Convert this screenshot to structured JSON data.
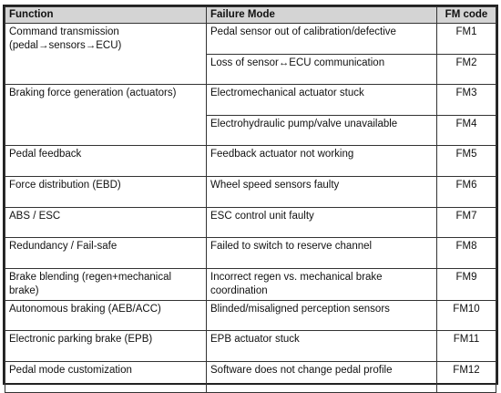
{
  "table": {
    "header": [
      "Function",
      "Failure Mode",
      "FM code"
    ],
    "groups": [
      {
        "function": "Command transmission (pedal→sensors→ECU)",
        "modes": [
          {
            "failure_mode": "Pedal sensor out of calibration/defective",
            "code": "FM1"
          },
          {
            "failure_mode": "Loss of sensor↔ECU communication",
            "code": "FM2"
          }
        ]
      },
      {
        "function": "Braking force generation (actuators)",
        "modes": [
          {
            "failure_mode": "Electromechanical actuator stuck",
            "code": "FM3"
          },
          {
            "failure_mode": "Electrohydraulic pump/valve unavailable",
            "code": "FM4"
          }
        ]
      },
      {
        "function": "Pedal feedback",
        "modes": [
          {
            "failure_mode": "Feedback actuator not working",
            "code": "FM5"
          }
        ]
      },
      {
        "function": "Force distribution (EBD)",
        "modes": [
          {
            "failure_mode": "Wheel speed sensors faulty",
            "code": "FM6"
          }
        ]
      },
      {
        "function": "ABS / ESC",
        "modes": [
          {
            "failure_mode": "ESC control unit faulty",
            "code": "FM7"
          }
        ]
      },
      {
        "function": "Redundancy / Fail-safe",
        "modes": [
          {
            "failure_mode": "Failed to switch to reserve channel",
            "code": "FM8"
          }
        ]
      },
      {
        "function": "Brake blending (regen+mechanical brake)",
        "modes": [
          {
            "failure_mode": "Incorrect regen vs. mechanical brake coordination",
            "code": "FM9"
          }
        ]
      },
      {
        "function": "Autonomous braking (AEB/ACC)",
        "modes": [
          {
            "failure_mode": "Blinded/misaligned perception sensors",
            "code": "FM10"
          }
        ]
      },
      {
        "function": "Electronic parking brake (EPB)",
        "modes": [
          {
            "failure_mode": "EPB actuator stuck",
            "code": "FM11"
          }
        ]
      },
      {
        "function": "Pedal mode customization",
        "modes": [
          {
            "failure_mode": "Software does not change pedal profile",
            "code": "FM12"
          }
        ]
      }
    ]
  }
}
